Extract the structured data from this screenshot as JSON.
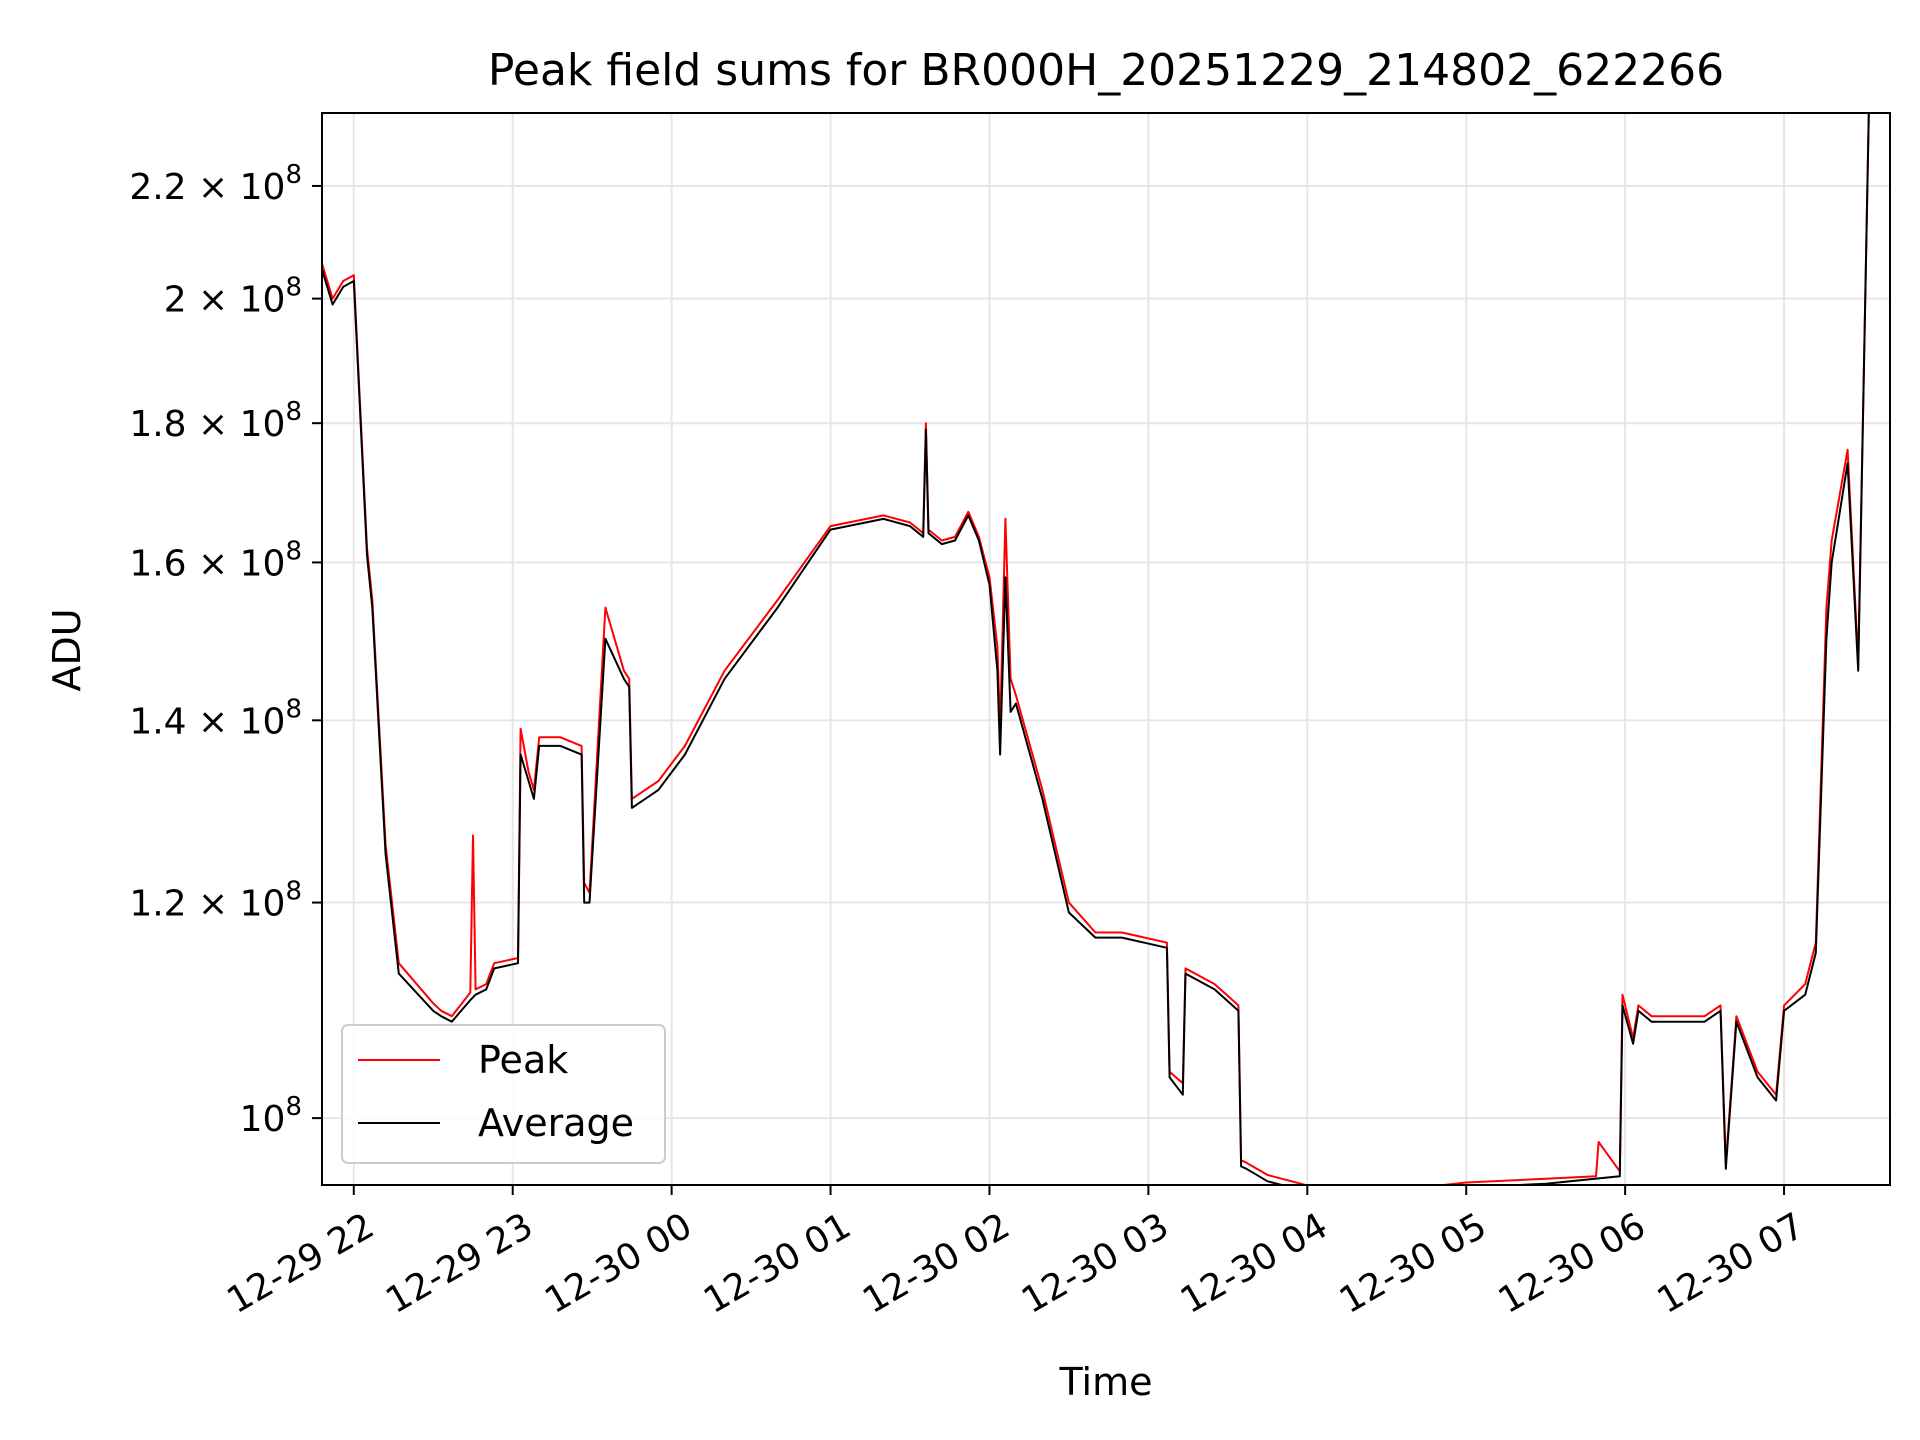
{
  "chart_data": {
    "type": "line",
    "title": "Peak field sums for BR000H_20251229_214802_622266",
    "xlabel": "Time",
    "ylabel": "ADU",
    "yscale": "log",
    "xlim": [
      "2025-12-29 21:48",
      "2025-12-30 07:40"
    ],
    "ylim": [
      94500000.0,
      234000000.0
    ],
    "grid": true,
    "legend_position": "lower-left",
    "x_ticks": [
      {
        "label": "12-29 22",
        "t": "2025-12-29 22:00"
      },
      {
        "label": "12-29 23",
        "t": "2025-12-29 23:00"
      },
      {
        "label": "12-30 00",
        "t": "2025-12-30 00:00"
      },
      {
        "label": "12-30 01",
        "t": "2025-12-30 01:00"
      },
      {
        "label": "12-30 02",
        "t": "2025-12-30 02:00"
      },
      {
        "label": "12-30 03",
        "t": "2025-12-30 03:00"
      },
      {
        "label": "12-30 04",
        "t": "2025-12-30 04:00"
      },
      {
        "label": "12-30 05",
        "t": "2025-12-30 05:00"
      },
      {
        "label": "12-30 06",
        "t": "2025-12-30 06:00"
      },
      {
        "label": "12-30 07",
        "t": "2025-12-30 07:00"
      }
    ],
    "y_ticks": [
      {
        "v": 100000000.0,
        "mant": "",
        "exp": "8"
      },
      {
        "v": 120000000.0,
        "mant": "1.2",
        "exp": "8"
      },
      {
        "v": 140000000.0,
        "mant": "1.4",
        "exp": "8"
      },
      {
        "v": 160000000.0,
        "mant": "1.6",
        "exp": "8"
      },
      {
        "v": 180000000.0,
        "mant": "1.8",
        "exp": "8"
      },
      {
        "v": 200000000.0,
        "mant": "2",
        "exp": "8"
      },
      {
        "v": 220000000.0,
        "mant": "2.2",
        "exp": "8"
      }
    ],
    "series": [
      {
        "name": "Peak",
        "color": "#ff0000",
        "x": [
          "2025-12-29 21:48",
          "2025-12-29 21:52",
          "2025-12-29 21:56",
          "2025-12-29 22:00",
          "2025-12-29 22:05",
          "2025-12-29 22:07",
          "2025-12-29 22:12",
          "2025-12-29 22:17",
          "2025-12-29 22:30",
          "2025-12-29 22:33",
          "2025-12-29 22:37",
          "2025-12-29 22:44",
          "2025-12-29 22:45",
          "2025-12-29 22:46",
          "2025-12-29 22:50",
          "2025-12-29 22:53",
          "2025-12-29 23:02",
          "2025-12-29 23:03",
          "2025-12-29 23:06",
          "2025-12-29 23:08",
          "2025-12-29 23:10",
          "2025-12-29 23:18",
          "2025-12-29 23:26",
          "2025-12-29 23:27",
          "2025-12-29 23:29",
          "2025-12-29 23:35",
          "2025-12-29 23:42",
          "2025-12-29 23:44",
          "2025-12-29 23:45",
          "2025-12-29 23:55",
          "2025-12-30 00:05",
          "2025-12-30 00:20",
          "2025-12-30 00:40",
          "2025-12-30 01:00",
          "2025-12-30 01:20",
          "2025-12-30 01:30",
          "2025-12-30 01:35",
          "2025-12-30 01:36",
          "2025-12-30 01:37",
          "2025-12-30 01:42",
          "2025-12-30 01:47",
          "2025-12-30 01:52",
          "2025-12-30 01:56",
          "2025-12-30 02:00",
          "2025-12-30 02:03",
          "2025-12-30 02:04",
          "2025-12-30 02:06",
          "2025-12-30 02:08",
          "2025-12-30 02:10",
          "2025-12-30 02:20",
          "2025-12-30 02:30",
          "2025-12-30 02:40",
          "2025-12-30 02:50",
          "2025-12-30 03:07",
          "2025-12-30 03:08",
          "2025-12-30 03:13",
          "2025-12-30 03:14",
          "2025-12-30 03:25",
          "2025-12-30 03:34",
          "2025-12-30 03:35",
          "2025-12-30 03:37",
          "2025-12-30 03:45",
          "2025-12-30 04:03",
          "2025-12-30 04:05",
          "2025-12-30 04:30",
          "2025-12-30 05:00",
          "2025-12-30 05:30",
          "2025-12-30 05:49",
          "2025-12-30 05:50",
          "2025-12-30 05:58",
          "2025-12-30 05:59",
          "2025-12-30 06:03",
          "2025-12-30 06:05",
          "2025-12-30 06:10",
          "2025-12-30 06:30",
          "2025-12-30 06:36",
          "2025-12-30 06:38",
          "2025-12-30 06:42",
          "2025-12-30 06:50",
          "2025-12-30 06:57",
          "2025-12-30 07:00",
          "2025-12-30 07:08",
          "2025-12-30 07:12",
          "2025-12-30 07:16",
          "2025-12-30 07:18",
          "2025-12-30 07:24",
          "2025-12-30 07:28",
          "2025-12-30 07:32"
        ],
        "values": [
          206000000.0,
          200000000.0,
          203000000.0,
          204000000.0,
          162000000.0,
          155000000.0,
          126000000.0,
          114000000.0,
          110200000.0,
          109500000.0,
          109000000.0,
          111200000.0,
          127000000.0,
          111500000.0,
          112000000.0,
          114000000.0,
          114500000.0,
          139000000.0,
          134000000.0,
          132000000.0,
          138000000.0,
          138000000.0,
          137000000.0,
          122000000.0,
          121000000.0,
          154000000.0,
          146000000.0,
          145000000.0,
          131000000.0,
          133000000.0,
          137000000.0,
          146000000.0,
          155000000.0,
          165000000.0,
          166500000.0,
          165500000.0,
          164000000.0,
          180000000.0,
          164500000.0,
          163000000.0,
          163500000.0,
          167000000.0,
          163500000.0,
          158000000.0,
          149000000.0,
          139000000.0,
          166000000.0,
          145000000.0,
          143000000.0,
          132000000.0,
          120000000.0,
          117000000.0,
          117000000.0,
          116000000.0,
          104000000.0,
          103000000.0,
          113500000.0,
          112000000.0,
          110000000.0,
          96500000.0,
          96300000.0,
          95300000.0,
          94300000.0,
          94200000.0,
          94000000.0,
          94700000.0,
          95000000.0,
          95200000.0,
          98000000.0,
          95600000.0,
          111000000.0,
          107000000.0,
          110000000.0,
          109000000.0,
          109000000.0,
          110000000.0,
          96200000.0,
          109000000.0,
          104000000.0,
          102000000.0,
          110000000.0,
          112000000.0,
          116000000.0,
          154000000.0,
          163000000.0,
          176000000.0,
          147000000.0,
          234000000.0
        ]
      },
      {
        "name": "Average",
        "color": "#000000",
        "x": [
          "2025-12-29 21:48",
          "2025-12-29 21:52",
          "2025-12-29 21:56",
          "2025-12-29 22:00",
          "2025-12-29 22:05",
          "2025-12-29 22:07",
          "2025-12-29 22:12",
          "2025-12-29 22:17",
          "2025-12-29 22:30",
          "2025-12-29 22:33",
          "2025-12-29 22:37",
          "2025-12-29 22:44",
          "2025-12-29 22:46",
          "2025-12-29 22:50",
          "2025-12-29 22:53",
          "2025-12-29 23:02",
          "2025-12-29 23:03",
          "2025-12-29 23:06",
          "2025-12-29 23:08",
          "2025-12-29 23:10",
          "2025-12-29 23:18",
          "2025-12-29 23:26",
          "2025-12-29 23:27",
          "2025-12-29 23:29",
          "2025-12-29 23:35",
          "2025-12-29 23:42",
          "2025-12-29 23:44",
          "2025-12-29 23:45",
          "2025-12-29 23:55",
          "2025-12-30 00:05",
          "2025-12-30 00:20",
          "2025-12-30 00:40",
          "2025-12-30 01:00",
          "2025-12-30 01:20",
          "2025-12-30 01:30",
          "2025-12-30 01:35",
          "2025-12-30 01:36",
          "2025-12-30 01:37",
          "2025-12-30 01:42",
          "2025-12-30 01:47",
          "2025-12-30 01:52",
          "2025-12-30 01:56",
          "2025-12-30 02:00",
          "2025-12-30 02:03",
          "2025-12-30 02:04",
          "2025-12-30 02:06",
          "2025-12-30 02:08",
          "2025-12-30 02:10",
          "2025-12-30 02:20",
          "2025-12-30 02:30",
          "2025-12-30 02:40",
          "2025-12-30 02:50",
          "2025-12-30 03:07",
          "2025-12-30 03:08",
          "2025-12-30 03:13",
          "2025-12-30 03:14",
          "2025-12-30 03:25",
          "2025-12-30 03:34",
          "2025-12-30 03:35",
          "2025-12-30 03:37",
          "2025-12-30 03:45",
          "2025-12-30 04:03",
          "2025-12-30 04:05",
          "2025-12-30 04:30",
          "2025-12-30 05:00",
          "2025-12-30 05:30",
          "2025-12-30 05:58",
          "2025-12-30 05:59",
          "2025-12-30 06:03",
          "2025-12-30 06:05",
          "2025-12-30 06:10",
          "2025-12-30 06:30",
          "2025-12-30 06:36",
          "2025-12-30 06:38",
          "2025-12-30 06:42",
          "2025-12-30 06:50",
          "2025-12-30 06:57",
          "2025-12-30 07:00",
          "2025-12-30 07:08",
          "2025-12-30 07:12",
          "2025-12-30 07:16",
          "2025-12-30 07:18",
          "2025-12-30 07:24",
          "2025-12-30 07:28",
          "2025-12-30 07:32"
        ],
        "values": [
          205000000.0,
          199000000.0,
          202000000.0,
          203000000.0,
          161000000.0,
          154000000.0,
          125000000.0,
          113000000.0,
          109500000.0,
          109000000.0,
          108500000.0,
          110500000.0,
          111000000.0,
          111500000.0,
          113500000.0,
          114000000.0,
          136000000.0,
          133000000.0,
          131000000.0,
          137000000.0,
          137000000.0,
          136000000.0,
          120000000.0,
          120000000.0,
          150000000.0,
          145000000.0,
          144000000.0,
          130000000.0,
          132000000.0,
          136000000.0,
          145000000.0,
          154000000.0,
          164500000.0,
          166000000.0,
          165000000.0,
          163500000.0,
          179000000.0,
          164000000.0,
          162500000.0,
          163000000.0,
          166500000.0,
          163000000.0,
          157000000.0,
          146000000.0,
          136000000.0,
          158000000.0,
          141000000.0,
          142000000.0,
          131000000.0,
          119000000.0,
          116500000.0,
          116500000.0,
          115500000.0,
          103500000.0,
          102000000.0,
          113000000.0,
          111500000.0,
          109500000.0,
          96000000.0,
          95800000.0,
          94800000.0,
          93800000.0,
          93800000.0,
          93600000.0,
          94300000.0,
          94600000.0,
          95200000.0,
          110000000.0,
          106500000.0,
          109500000.0,
          108500000.0,
          108500000.0,
          109500000.0,
          95800000.0,
          108500000.0,
          103500000.0,
          101500000.0,
          109500000.0,
          111000000.0,
          115000000.0,
          150000000.0,
          160000000.0,
          174000000.0,
          146000000.0,
          234000000.0
        ]
      }
    ]
  }
}
